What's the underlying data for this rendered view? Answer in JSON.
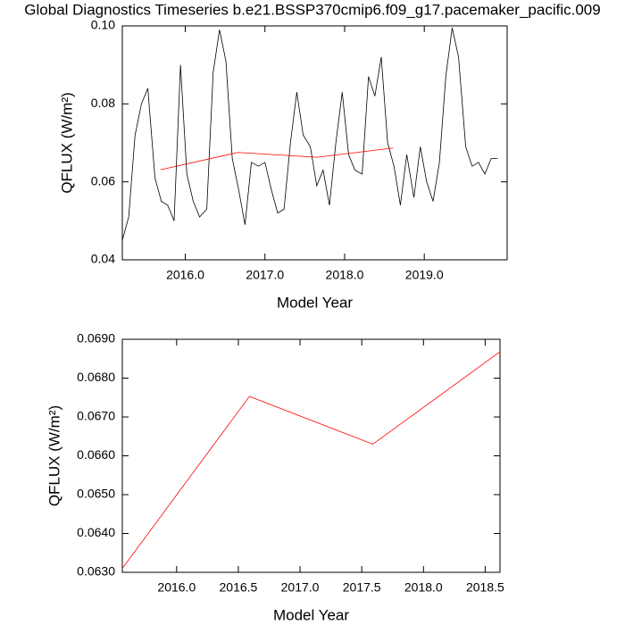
{
  "chart_data": [
    {
      "type": "line",
      "title": "Global Diagnostics Timeseries b.e21.BSSP370cmip6.f09_g17.pacemaker_pacific.009",
      "x_label": "Model Year",
      "y_label": "QFLUX (W/m²)",
      "xlim": [
        2015.21,
        2020.04
      ],
      "ylim": [
        0.04,
        0.1
      ],
      "xticks": [
        {
          "value": 2016,
          "label": "2016.0"
        },
        {
          "value": 2017,
          "label": "2017.0"
        },
        {
          "value": 2018,
          "label": "2018.0"
        },
        {
          "value": 2019,
          "label": "2019.0"
        }
      ],
      "yticks": [
        0.04,
        0.06,
        0.08,
        {
          "value": 0.1,
          "label": "0.10"
        }
      ],
      "series": [
        {
          "color": "#000000",
          "x": [
            2015.21,
            2015.29,
            2015.37,
            2015.45,
            2015.53,
            2015.62,
            2015.7,
            2015.78,
            2015.86,
            2015.94,
            2016.02,
            2016.1,
            2016.18,
            2016.27,
            2016.35,
            2016.43,
            2016.51,
            2016.59,
            2016.67,
            2016.75,
            2016.83,
            2016.92,
            2017.0,
            2017.08,
            2017.16,
            2017.24,
            2017.32,
            2017.4,
            2017.48,
            2017.57,
            2017.65,
            2017.73,
            2017.81,
            2017.89,
            2017.97,
            2018.05,
            2018.13,
            2018.22,
            2018.3,
            2018.38,
            2018.46,
            2018.54,
            2018.62,
            2018.7,
            2018.78,
            2018.87,
            2018.95,
            2019.03,
            2019.11,
            2019.19,
            2019.27,
            2019.35,
            2019.43,
            2019.52,
            2019.6,
            2019.68,
            2019.76,
            2019.84,
            2019.92
          ],
          "values": [
            0.045,
            0.051,
            0.072,
            0.08,
            0.084,
            0.061,
            0.055,
            0.054,
            0.05,
            0.09,
            0.062,
            0.055,
            0.051,
            0.053,
            0.088,
            0.099,
            0.091,
            0.066,
            0.058,
            0.049,
            0.065,
            0.064,
            0.065,
            0.058,
            0.052,
            0.053,
            0.07,
            0.083,
            0.072,
            0.069,
            0.059,
            0.063,
            0.054,
            0.07,
            0.083,
            0.067,
            0.063,
            0.062,
            0.087,
            0.082,
            0.092,
            0.07,
            0.064,
            0.054,
            0.067,
            0.056,
            0.069,
            0.06,
            0.055,
            0.065,
            0.087,
            0.0995,
            0.092,
            0.069,
            0.064,
            0.065,
            0.062,
            0.066,
            0.066
          ]
        },
        {
          "color": "#ff0000",
          "x": [
            2015.69,
            2016.66,
            2017.65,
            2018.61
          ],
          "values": [
            0.0631,
            0.06753,
            0.0663,
            0.06868
          ]
        }
      ]
    },
    {
      "type": "line",
      "x_label": "Model Year",
      "y_label": "QFLUX (W/m²)",
      "xlim": [
        2015.56,
        2018.62
      ],
      "ylim": [
        0.063,
        0.069
      ],
      "xticks": [
        {
          "value": 2016,
          "label": "2016.0"
        },
        {
          "value": 2016.5,
          "label": "2016.5"
        },
        {
          "value": 2017,
          "label": "2017.0"
        },
        {
          "value": 2017.5,
          "label": "2017.5"
        },
        {
          "value": 2018,
          "label": "2018.0"
        },
        {
          "value": 2018.5,
          "label": "2018.5"
        }
      ],
      "yticks": [
        {
          "value": 0.063,
          "label": "0.0630"
        },
        {
          "value": 0.064,
          "label": "0.0640"
        },
        {
          "value": 0.065,
          "label": "0.0650"
        },
        {
          "value": 0.066,
          "label": "0.0660"
        },
        {
          "value": 0.067,
          "label": "0.0670"
        },
        {
          "value": 0.068,
          "label": "0.0680"
        },
        {
          "value": 0.069,
          "label": "0.0690"
        }
      ],
      "series": [
        {
          "color": "#ff0000",
          "x": [
            2015.56,
            2016.59,
            2017.59,
            2018.62
          ],
          "values": [
            0.0631,
            0.06753,
            0.0663,
            0.06868
          ]
        }
      ]
    }
  ]
}
